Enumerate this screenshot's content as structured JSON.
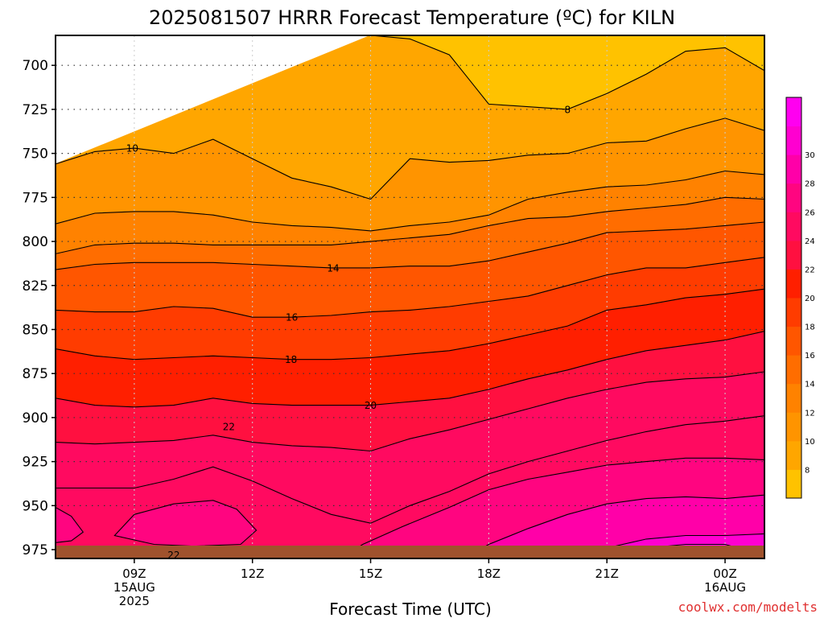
{
  "chart_data": {
    "type": "contour",
    "title": "2025081507 HRRR Forecast Temperature (ºC) for KILN",
    "xlabel": "Forecast Time (UTC)",
    "ylabel": "",
    "x_ticks": [
      {
        "hour": 9,
        "lines": [
          "09Z",
          "15AUG",
          "2025"
        ]
      },
      {
        "hour": 12,
        "lines": [
          "12Z"
        ]
      },
      {
        "hour": 15,
        "lines": [
          "15Z"
        ]
      },
      {
        "hour": 18,
        "lines": [
          "18Z"
        ]
      },
      {
        "hour": 21,
        "lines": [
          "21Z"
        ]
      },
      {
        "hour": 24,
        "lines": [
          "00Z",
          "16AUG"
        ]
      }
    ],
    "xlim": [
      7,
      25
    ],
    "y_ticks": [
      700,
      725,
      750,
      775,
      800,
      825,
      850,
      875,
      900,
      925,
      950,
      975
    ],
    "ylim": [
      683,
      980
    ],
    "y_axis": "pressure (hPa), increasing downward",
    "grid": true,
    "ground_color": "#a0522d",
    "contour_interval": 2,
    "colorbar": {
      "ticks": [
        8,
        10,
        12,
        14,
        16,
        18,
        20,
        22,
        24,
        26,
        28,
        30
      ],
      "colors": [
        "#ffc200",
        "#ffa600",
        "#ff9400",
        "#ff8200",
        "#ff6d00",
        "#ff5600",
        "#ff3c00",
        "#ff1f00",
        "#ff1040",
        "#ff0a60",
        "#ff0580",
        "#ff00a8",
        "#ff00d0",
        "#ff00f0"
      ]
    },
    "contour_lines": [
      {
        "level": 8,
        "label": "8",
        "label_at": {
          "hour": 20,
          "p": 725
        },
        "points": [
          [
            15,
            683
          ],
          [
            16,
            685
          ],
          [
            17,
            694
          ],
          [
            17.5,
            708
          ],
          [
            18,
            722
          ],
          [
            20,
            725
          ],
          [
            21,
            716
          ],
          [
            22,
            705
          ],
          [
            23,
            692
          ],
          [
            24,
            690
          ],
          [
            25,
            703
          ]
        ]
      },
      {
        "level": 10,
        "label": "10",
        "label_at": {
          "hour": 8.95,
          "p": 747
        },
        "points": [
          [
            7,
            756
          ],
          [
            8,
            749
          ],
          [
            9,
            747
          ],
          [
            10,
            750
          ],
          [
            11,
            742
          ],
          [
            12,
            753
          ],
          [
            13,
            764
          ],
          [
            14,
            769
          ],
          [
            15,
            776
          ],
          [
            16,
            753
          ],
          [
            17,
            755
          ],
          [
            18,
            754
          ],
          [
            19,
            751
          ],
          [
            20,
            750
          ],
          [
            21,
            744
          ],
          [
            22,
            743
          ],
          [
            23,
            736
          ],
          [
            24,
            730
          ],
          [
            25,
            737
          ]
        ]
      },
      {
        "level": 12,
        "label": "",
        "label_at": null,
        "points": [
          [
            7,
            790
          ],
          [
            8,
            784
          ],
          [
            9,
            783
          ],
          [
            10,
            783
          ],
          [
            11,
            785
          ],
          [
            12,
            789
          ],
          [
            13,
            791
          ],
          [
            14,
            792
          ],
          [
            15,
            794
          ],
          [
            16,
            791
          ],
          [
            17,
            789
          ],
          [
            18,
            785
          ],
          [
            19,
            776
          ],
          [
            20,
            772
          ],
          [
            21,
            769
          ],
          [
            22,
            768
          ],
          [
            23,
            765
          ],
          [
            24,
            760
          ],
          [
            25,
            762
          ]
        ]
      },
      {
        "level": 12,
        "label": "",
        "label_at": null,
        "points": [
          [
            7,
            807
          ],
          [
            8,
            802
          ],
          [
            9,
            801
          ],
          [
            10,
            801
          ],
          [
            11,
            802
          ],
          [
            12,
            802
          ],
          [
            13,
            802
          ],
          [
            14,
            802
          ],
          [
            15,
            800
          ],
          [
            16,
            798
          ],
          [
            17,
            796
          ],
          [
            18,
            791
          ],
          [
            19,
            787
          ],
          [
            20,
            786
          ],
          [
            21,
            783
          ],
          [
            22,
            781
          ],
          [
            23,
            779
          ],
          [
            24,
            775
          ],
          [
            25,
            776
          ]
        ]
      },
      {
        "level": 14,
        "label": "14",
        "label_at": {
          "hour": 14.05,
          "p": 815
        },
        "points": [
          [
            7,
            816
          ],
          [
            8,
            813
          ],
          [
            9,
            812
          ],
          [
            10,
            812
          ],
          [
            11,
            812
          ],
          [
            12,
            813
          ],
          [
            13,
            814
          ],
          [
            14,
            815
          ],
          [
            15,
            815
          ],
          [
            16,
            814
          ],
          [
            17,
            814
          ],
          [
            18,
            811
          ],
          [
            19,
            806
          ],
          [
            20,
            801
          ],
          [
            21,
            795
          ],
          [
            22,
            794
          ],
          [
            23,
            793
          ],
          [
            24,
            791
          ],
          [
            25,
            789
          ]
        ]
      },
      {
        "level": 16,
        "label": "16",
        "label_at": {
          "hour": 13,
          "p": 843
        },
        "points": [
          [
            7,
            839
          ],
          [
            8,
            840
          ],
          [
            9,
            840
          ],
          [
            10,
            837
          ],
          [
            11,
            838
          ],
          [
            12,
            843
          ],
          [
            13,
            843
          ],
          [
            14,
            842
          ],
          [
            15,
            840
          ],
          [
            16,
            839
          ],
          [
            17,
            837
          ],
          [
            18,
            834
          ],
          [
            19,
            831
          ],
          [
            20,
            825
          ],
          [
            21,
            819
          ],
          [
            22,
            815
          ],
          [
            23,
            815
          ],
          [
            24,
            812
          ],
          [
            25,
            809
          ]
        ]
      },
      {
        "level": 18,
        "label": "18",
        "label_at": {
          "hour": 12.98,
          "p": 867
        },
        "points": [
          [
            7,
            861
          ],
          [
            8,
            865
          ],
          [
            9,
            867
          ],
          [
            10,
            866
          ],
          [
            11,
            865
          ],
          [
            12,
            866
          ],
          [
            13,
            867
          ],
          [
            14,
            867
          ],
          [
            15,
            866
          ],
          [
            16,
            864
          ],
          [
            17,
            862
          ],
          [
            18,
            858
          ],
          [
            19,
            853
          ],
          [
            20,
            848
          ],
          [
            21,
            839
          ],
          [
            22,
            836
          ],
          [
            23,
            832
          ],
          [
            24,
            830
          ],
          [
            25,
            827
          ]
        ]
      },
      {
        "level": 20,
        "label": "20",
        "label_at": {
          "hour": 15,
          "p": 893
        },
        "points": [
          [
            7,
            889
          ],
          [
            8,
            893
          ],
          [
            9,
            894
          ],
          [
            10,
            893
          ],
          [
            11,
            889
          ],
          [
            12,
            892
          ],
          [
            13,
            893
          ],
          [
            14,
            893
          ],
          [
            15,
            893
          ],
          [
            16,
            891
          ],
          [
            17,
            889
          ],
          [
            18,
            884
          ],
          [
            19,
            878
          ],
          [
            20,
            873
          ],
          [
            21,
            867
          ],
          [
            22,
            862
          ],
          [
            23,
            859
          ],
          [
            24,
            856
          ],
          [
            25,
            851
          ]
        ]
      },
      {
        "level": 20,
        "label": "",
        "label_at": null,
        "points": [
          [
            7,
            914
          ],
          [
            8,
            915
          ],
          [
            9,
            914
          ],
          [
            10,
            913
          ],
          [
            11,
            910
          ],
          [
            12,
            914
          ],
          [
            13,
            916
          ],
          [
            14,
            917
          ],
          [
            15,
            919
          ],
          [
            16,
            912
          ],
          [
            17,
            907
          ],
          [
            18,
            901
          ],
          [
            19,
            895
          ],
          [
            20,
            889
          ],
          [
            21,
            884
          ],
          [
            22,
            880
          ],
          [
            23,
            878
          ],
          [
            24,
            877
          ],
          [
            25,
            874
          ]
        ]
      },
      {
        "level": 22,
        "label": "22",
        "label_at": {
          "hour": 11.4,
          "p": 905
        },
        "points": [
          [
            7,
            940
          ],
          [
            8,
            940
          ],
          [
            9,
            940
          ],
          [
            10,
            935
          ],
          [
            11,
            928
          ],
          [
            12,
            936
          ],
          [
            13,
            946
          ],
          [
            14,
            955
          ],
          [
            15,
            960
          ],
          [
            16,
            950
          ],
          [
            17,
            942
          ],
          [
            18,
            932
          ],
          [
            19,
            925
          ],
          [
            20,
            919
          ],
          [
            21,
            913
          ],
          [
            22,
            908
          ],
          [
            23,
            904
          ],
          [
            24,
            902
          ],
          [
            25,
            899
          ]
        ]
      },
      {
        "level": 24,
        "label": "",
        "label_at": null,
        "points": [
          [
            14.1,
            982
          ],
          [
            14.8,
            972
          ],
          [
            15.8,
            962
          ],
          [
            17,
            951
          ],
          [
            18,
            941
          ],
          [
            19,
            935
          ],
          [
            20,
            931
          ],
          [
            21,
            927
          ],
          [
            22,
            925
          ],
          [
            23,
            923
          ],
          [
            24,
            923
          ],
          [
            25,
            924
          ]
        ]
      },
      {
        "level": 24,
        "label": "",
        "label_at": null,
        "points": [
          [
            17.2,
            982
          ],
          [
            18,
            972
          ],
          [
            19,
            963
          ],
          [
            20,
            955
          ],
          [
            21,
            949
          ],
          [
            22,
            946
          ],
          [
            23,
            945
          ],
          [
            24,
            946
          ],
          [
            25,
            944
          ]
        ]
      },
      {
        "level": 26,
        "label": "",
        "label_at": null,
        "points": [
          [
            19.3,
            982
          ],
          [
            20,
            979
          ],
          [
            21,
            974
          ],
          [
            22,
            969
          ],
          [
            23,
            967
          ],
          [
            24,
            967
          ],
          [
            25,
            966
          ]
        ]
      },
      {
        "level": 24,
        "label": "",
        "label_at": null,
        "closed": true,
        "points": [
          [
            8.5,
            967
          ],
          [
            9,
            955
          ],
          [
            10,
            949
          ],
          [
            11,
            947
          ],
          [
            11.6,
            952
          ],
          [
            12.1,
            964
          ],
          [
            11.7,
            972
          ],
          [
            10.5,
            973
          ],
          [
            9.5,
            972
          ],
          [
            8.5,
            967
          ]
        ]
      },
      {
        "level": 24,
        "label": "",
        "label_at": null,
        "points": [
          [
            7,
            951
          ],
          [
            7.4,
            956
          ],
          [
            7.7,
            965
          ],
          [
            7.4,
            970
          ],
          [
            7,
            971
          ]
        ]
      },
      {
        "level": 22,
        "label": "22",
        "label_at": {
          "hour": 10,
          "p": 978
        },
        "points": [
          [
            7,
            980
          ],
          [
            8,
            978
          ],
          [
            9,
            978
          ],
          [
            10,
            978
          ],
          [
            11,
            979
          ],
          [
            12,
            981
          ],
          [
            13,
            982
          ]
        ]
      },
      {
        "level": 28,
        "label": "",
        "label_at": null,
        "points": [
          [
            24.8,
            982
          ],
          [
            24.5,
            975
          ],
          [
            24,
            972
          ],
          [
            23,
            972
          ],
          [
            22,
            974
          ],
          [
            21,
            978
          ],
          [
            20.5,
            982
          ]
        ]
      }
    ],
    "band_fills": [
      {
        "color": "#ffc200",
        "top": "ylim",
        "bottom_line": 0
      },
      {
        "color": "#ffa600",
        "top_line": 0,
        "bottom_line": 1
      },
      {
        "color": "#ff9400",
        "top_line": 1,
        "bottom_line": 2
      },
      {
        "color": "#ff8200",
        "top_line": 2,
        "bottom_line": 3
      },
      {
        "color": "#ff6d00",
        "top_line": 3,
        "bottom_line": 4
      },
      {
        "color": "#ff5600",
        "top_line": 4,
        "bottom_line": 5
      },
      {
        "color": "#ff3c00",
        "top_line": 5,
        "bottom_line": 6
      },
      {
        "color": "#ff1f00",
        "top_line": 6,
        "bottom_line": 7
      },
      {
        "color": "#ff1040",
        "top_line": 7,
        "bottom_line": 8
      },
      {
        "color": "#ff0a60",
        "top_line": 8,
        "bottom_line": 9
      },
      {
        "color": "#ff0a60",
        "top_line": 9,
        "bottom": "ylim"
      }
    ],
    "region_fills": [
      {
        "color": "#ff0580",
        "line": 10
      },
      {
        "color": "#ff00a8",
        "line": 11
      },
      {
        "color": "#ff00d0",
        "line": 12
      },
      {
        "color": "#ff0580",
        "line": 13
      },
      {
        "color": "#ff0580",
        "line": 14
      },
      {
        "color": "#ff00f0",
        "line": 16
      }
    ]
  },
  "credit": "coolwx.com/modelts",
  "colors": {
    "frame": "#000000",
    "grid": "#333333",
    "vgrid": "#cccccc"
  }
}
